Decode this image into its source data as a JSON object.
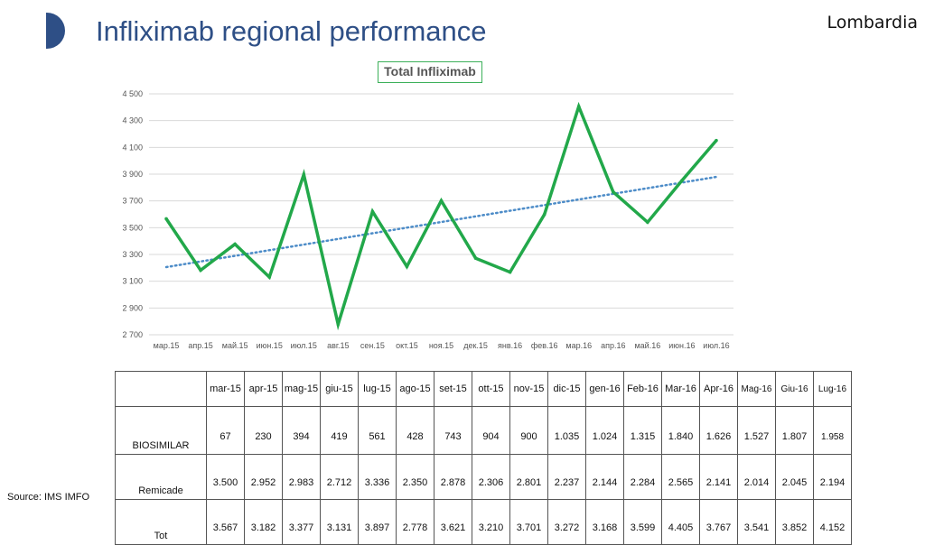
{
  "header": {
    "title": "Infliximab regional performance",
    "region": "Lombardia"
  },
  "colors": {
    "title": "#2e4f86",
    "logo": "#2e4f86",
    "series": "#22a84a",
    "trend": "#4d8cc8",
    "grid": "#d9d9d9"
  },
  "chart_data": {
    "type": "line",
    "title": "Total Infliximab",
    "categories": [
      "мар.15",
      "апр.15",
      "май.15",
      "июн.15",
      "июл.15",
      "авг.15",
      "сен.15",
      "окт.15",
      "ноя.15",
      "дек.15",
      "янв.16",
      "фев.16",
      "мар.16",
      "апр.16",
      "май.16",
      "июн.16",
      "июл.16"
    ],
    "series": [
      {
        "values": [
          3567,
          3182,
          3377,
          3131,
          3897,
          2778,
          3621,
          3210,
          3701,
          3272,
          3168,
          3599,
          4405,
          3767,
          3541,
          3852,
          4152
        ]
      }
    ],
    "trendline": {
      "type": "linear",
      "style": "dotted"
    },
    "ylim": [
      2700,
      4500
    ],
    "yticks": [
      2700,
      2900,
      3100,
      3300,
      3500,
      3700,
      3900,
      4100,
      4300,
      4500
    ],
    "ytick_labels": [
      "2 700",
      "2 900",
      "3 100",
      "3 300",
      "3 500",
      "3 700",
      "3 900",
      "4 100",
      "4 300",
      "4 500"
    ],
    "grid": true,
    "legend": "none",
    "xlabel": "",
    "ylabel": ""
  },
  "table": {
    "columns": [
      "mar-15",
      "apr-15",
      "mag-15",
      "giu-15",
      "lug-15",
      "ago-15",
      "set-15",
      "ott-15",
      "nov-15",
      "dic-15",
      "gen-16",
      "Feb-16",
      "Mar-16",
      "Apr-16",
      "Mag-16",
      "Giu-16",
      "Lug-16"
    ],
    "rows": [
      {
        "label": "BIOSIMILAR",
        "values": [
          "67",
          "230",
          "394",
          "419",
          "561",
          "428",
          "743",
          "904",
          "900",
          "1.035",
          "1.024",
          "1.315",
          "1.840",
          "1.626",
          "1.527",
          "1.807",
          "1.958"
        ]
      },
      {
        "label": "Remicade",
        "values": [
          "3.500",
          "2.952",
          "2.983",
          "2.712",
          "3.336",
          "2.350",
          "2.878",
          "2.306",
          "2.801",
          "2.237",
          "2.144",
          "2.284",
          "2.565",
          "2.141",
          "2.014",
          "2.045",
          "2.194"
        ]
      },
      {
        "label": "Tot",
        "values": [
          "3.567",
          "3.182",
          "3.377",
          "3.131",
          "3.897",
          "2.778",
          "3.621",
          "3.210",
          "3.701",
          "3.272",
          "3.168",
          "3.599",
          "4.405",
          "3.767",
          "3.541",
          "3.852",
          "4.152"
        ]
      }
    ]
  },
  "source": "Source: IMS IMFO"
}
